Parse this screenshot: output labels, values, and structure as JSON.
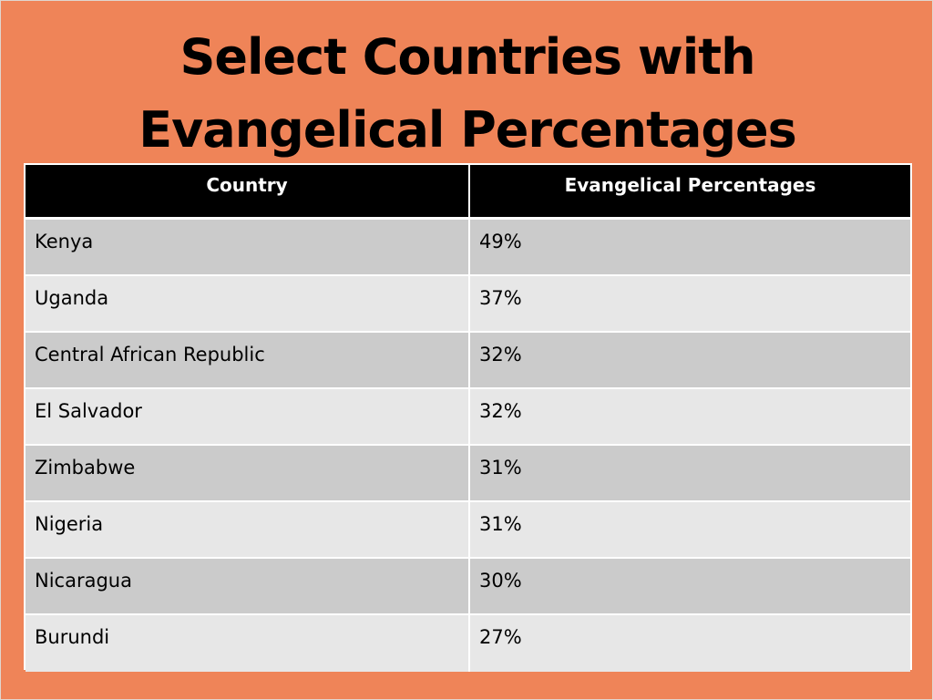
{
  "slide": {
    "title_line1": "Select Countries with",
    "title_line2": "Evangelical Percentages"
  },
  "table": {
    "headers": [
      "Country",
      "Evangelical Percentages"
    ],
    "rows": [
      {
        "country": "Kenya",
        "percentage": "49%"
      },
      {
        "country": "Uganda",
        "percentage": "37%"
      },
      {
        "country": "Central African Republic",
        "percentage": "32%"
      },
      {
        "country": "El Salvador",
        "percentage": "32%"
      },
      {
        "country": "Zimbabwe",
        "percentage": "31%"
      },
      {
        "country": "Nigeria",
        "percentage": "31%"
      },
      {
        "country": "Nicaragua",
        "percentage": "30%"
      },
      {
        "country": "Burundi",
        "percentage": "27%"
      }
    ]
  },
  "colors": {
    "background": "#ef8458",
    "header_bg": "#000000",
    "row_dark": "#cbcbcb",
    "row_light": "#e7e7e7"
  }
}
